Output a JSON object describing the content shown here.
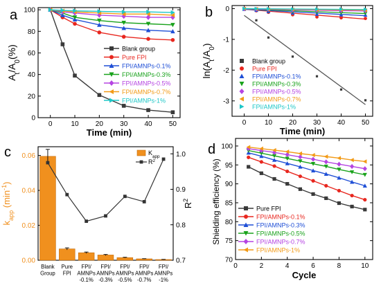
{
  "panel_labels": [
    "a",
    "b",
    "c",
    "d"
  ],
  "colors": {
    "blank": "#3a3a3a",
    "pure": "#e8271f",
    "p01": "#1f4fd6",
    "p03": "#19a21b",
    "p05": "#b544e2",
    "p07": "#f29a16",
    "p1": "#1ec7c7",
    "bar": "#f0901e"
  },
  "chart_data": [
    {
      "panel": "a",
      "type": "line",
      "xlabel": "Time (min)",
      "ylabel_parts": [
        "A",
        "t",
        "/A",
        "0",
        "(%)"
      ],
      "xlim": [
        -5,
        53
      ],
      "ylim": [
        0,
        102
      ],
      "xticks": [
        0,
        10,
        20,
        30,
        40,
        50
      ],
      "yticks": [
        0,
        20,
        40,
        60,
        80,
        100
      ],
      "x": [
        0,
        5,
        10,
        20,
        30,
        40,
        50
      ],
      "legend_position": "right",
      "series": [
        {
          "name": "Blank group",
          "color_key": "blank",
          "marker": "square",
          "values": [
            100,
            68,
            39,
            21,
            11,
            7,
            5
          ]
        },
        {
          "name": "Pure FPI",
          "color_key": "pure",
          "marker": "circle",
          "values": [
            100,
            93,
            87,
            79,
            75,
            73,
            72
          ]
        },
        {
          "name": "FPI/AMNPs-0.1%",
          "color_key": "p01",
          "marker": "triangle-up",
          "values": [
            100,
            95,
            91,
            86,
            83,
            81,
            80
          ]
        },
        {
          "name": "FPI/AMNPs-0.3%",
          "color_key": "p03",
          "marker": "triangle-down",
          "values": [
            100,
            97,
            93,
            90,
            88,
            87,
            86
          ]
        },
        {
          "name": "FPI/AMNPs-0.5%",
          "color_key": "p05",
          "marker": "diamond",
          "values": [
            100,
            98,
            97,
            95,
            94,
            93,
            93
          ]
        },
        {
          "name": "FPI/AMNPs-0.7%",
          "color_key": "p07",
          "marker": "triangle-left",
          "values": [
            100,
            99,
            98,
            97,
            96,
            96,
            95
          ]
        },
        {
          "name": "FPI/AMNPs-1%",
          "color_key": "p1",
          "marker": "triangle-right",
          "values": [
            100,
            99.5,
            99,
            98.5,
            98,
            98,
            97.5
          ]
        }
      ]
    },
    {
      "panel": "b",
      "type": "scatter",
      "xlabel": "Time (min)",
      "ylabel_parts": [
        "ln(A",
        "t",
        "/A",
        "0",
        ")"
      ],
      "xlim": [
        -5,
        53
      ],
      "ylim": [
        -3.5,
        0.1
      ],
      "xticks": [
        0,
        10,
        20,
        30,
        40,
        50
      ],
      "yticks": [
        0,
        -1,
        -2,
        -3
      ],
      "x": [
        0,
        5,
        10,
        20,
        30,
        40,
        50
      ],
      "legend_position": "bottom-left",
      "series": [
        {
          "name": "Blank group",
          "color_key": "blank",
          "marker": "square",
          "values": [
            -0.02,
            -0.38,
            -0.94,
            -1.56,
            -2.2,
            -2.63,
            -2.98
          ],
          "fit": [
            -0.22,
            -3.12
          ]
        },
        {
          "name": "Pure FPI",
          "color_key": "pure",
          "marker": "circle",
          "values": [
            -0.02,
            -0.07,
            -0.12,
            -0.2,
            -0.27,
            -0.3,
            -0.32
          ],
          "fit": [
            -0.02,
            -0.34
          ]
        },
        {
          "name": "FPI/AMNPs-0.1%",
          "color_key": "p01",
          "marker": "triangle-up",
          "values": [
            -0.02,
            -0.05,
            -0.09,
            -0.14,
            -0.18,
            -0.2,
            -0.21
          ],
          "fit": [
            -0.02,
            -0.23
          ]
        },
        {
          "name": "FPI/AMNPs-0.3%",
          "color_key": "p03",
          "marker": "triangle-down",
          "values": [
            -0.01,
            -0.03,
            -0.06,
            -0.1,
            -0.12,
            -0.14,
            -0.15
          ],
          "fit": [
            -0.01,
            -0.16
          ]
        },
        {
          "name": "FPI/AMNPs-0.5%",
          "color_key": "p05",
          "marker": "diamond",
          "values": [
            -0.01,
            -0.02,
            -0.03,
            -0.05,
            -0.06,
            -0.07,
            -0.07
          ],
          "fit": [
            -0.01,
            -0.08
          ]
        },
        {
          "name": "FPI/AMNPs-0.7%",
          "color_key": "p07",
          "marker": "triangle-left",
          "values": [
            0,
            -0.01,
            -0.02,
            -0.03,
            -0.04,
            -0.04,
            -0.05
          ],
          "fit": [
            0,
            -0.05
          ]
        },
        {
          "name": "FPI/AMNPs-1%",
          "color_key": "p1",
          "marker": "triangle-right",
          "values": [
            0,
            -0.005,
            -0.01,
            -0.015,
            -0.02,
            -0.02,
            -0.025
          ],
          "fit": [
            0,
            -0.03
          ]
        }
      ]
    },
    {
      "panel": "c",
      "type": "bar",
      "ylabel_parts": [
        "k",
        "app",
        " (min",
        "-1",
        ")"
      ],
      "ylabel2_parts": [
        "R",
        "2"
      ],
      "ylim": [
        0,
        0.065
      ],
      "ylim2": [
        0.7,
        1.02
      ],
      "yticks": [
        0,
        0.02,
        0.04,
        0.06
      ],
      "yticks_labels": [
        "0.00",
        "0.02",
        "0.04",
        "0.06"
      ],
      "yticks2": [
        0.7,
        0.8,
        0.9,
        1.0
      ],
      "yticks2_labels": [
        "0.7",
        "0.8",
        "0.9",
        "1.0"
      ],
      "categories": [
        [
          "Blank",
          "Group"
        ],
        [
          "Pure",
          "FPI"
        ],
        [
          "FPI/",
          "AMNPs",
          "-0.1%"
        ],
        [
          "FPI/",
          "AMNPs",
          "-0.3%"
        ],
        [
          "FPI/",
          "AMNPs",
          "-0.5%"
        ],
        [
          "FPI/",
          "AMNPs",
          "-0.7%"
        ],
        [
          "FPI/",
          "AMNPs",
          "-1%"
        ]
      ],
      "values": [
        0.0595,
        0.0065,
        0.0043,
        0.003,
        0.0015,
        0.0008,
        0.0004
      ],
      "errors": [
        0.004,
        0.0006,
        0.0004,
        0.0003,
        0.0002,
        0.0001,
        0.0001
      ],
      "r2": [
        0.975,
        0.885,
        0.81,
        0.825,
        0.88,
        0.865,
        0.985
      ],
      "legend": [
        {
          "label_parts": [
            "K",
            "app"
          ],
          "kind": "bar"
        },
        {
          "label_parts": [
            "R",
            "2"
          ],
          "kind": "line"
        }
      ],
      "legend_position": "top-right"
    },
    {
      "panel": "d",
      "type": "line",
      "xlabel": "Cycle",
      "ylabel": "Shielding efficiency (%)",
      "xlim": [
        0,
        10.6
      ],
      "ylim": [
        70,
        102
      ],
      "xticks": [
        0,
        2,
        4,
        6,
        8,
        10
      ],
      "yticks": [
        70,
        75,
        80,
        85,
        90,
        95,
        100
      ],
      "x": [
        1,
        2,
        3,
        4,
        5,
        6,
        7,
        8,
        9,
        10
      ],
      "legend_position": "bottom-left",
      "series": [
        {
          "name": "Pure FPI",
          "color_key": "blank",
          "marker": "square",
          "values": [
            94.5,
            92.8,
            91.3,
            90.0,
            88.6,
            87.3,
            86.2,
            84.9,
            84.0,
            83.2
          ]
        },
        {
          "name": "FPI/AMNPs-0.1%",
          "color_key": "pure",
          "marker": "circle",
          "values": [
            97.0,
            95.8,
            94.7,
            93.3,
            92.0,
            90.8,
            89.5,
            88.2,
            86.9,
            85.8
          ]
        },
        {
          "name": "FPI/AMNPs-0.3%",
          "color_key": "p01",
          "marker": "triangle-up",
          "values": [
            98.2,
            97.3,
            96.3,
            95.4,
            94.5,
            93.5,
            92.6,
            91.6,
            90.5,
            89.5
          ]
        },
        {
          "name": "FPI/AMNPs-0.5%",
          "color_key": "p03",
          "marker": "triangle-down",
          "values": [
            98.8,
            98.1,
            97.4,
            96.7,
            96.0,
            95.3,
            94.6,
            93.8,
            93.1,
            92.4
          ]
        },
        {
          "name": "FPI/AMNPs-0.7%",
          "color_key": "p05",
          "marker": "diamond",
          "values": [
            99.3,
            98.8,
            98.3,
            97.7,
            97.1,
            96.5,
            95.8,
            95.2,
            94.6,
            94.0
          ]
        },
        {
          "name": "FPI/AMNPs-1%",
          "color_key": "p07",
          "marker": "triangle-left",
          "values": [
            99.7,
            99.3,
            98.9,
            98.5,
            98.0,
            97.6,
            97.2,
            96.8,
            96.3,
            95.9
          ]
        }
      ]
    }
  ]
}
